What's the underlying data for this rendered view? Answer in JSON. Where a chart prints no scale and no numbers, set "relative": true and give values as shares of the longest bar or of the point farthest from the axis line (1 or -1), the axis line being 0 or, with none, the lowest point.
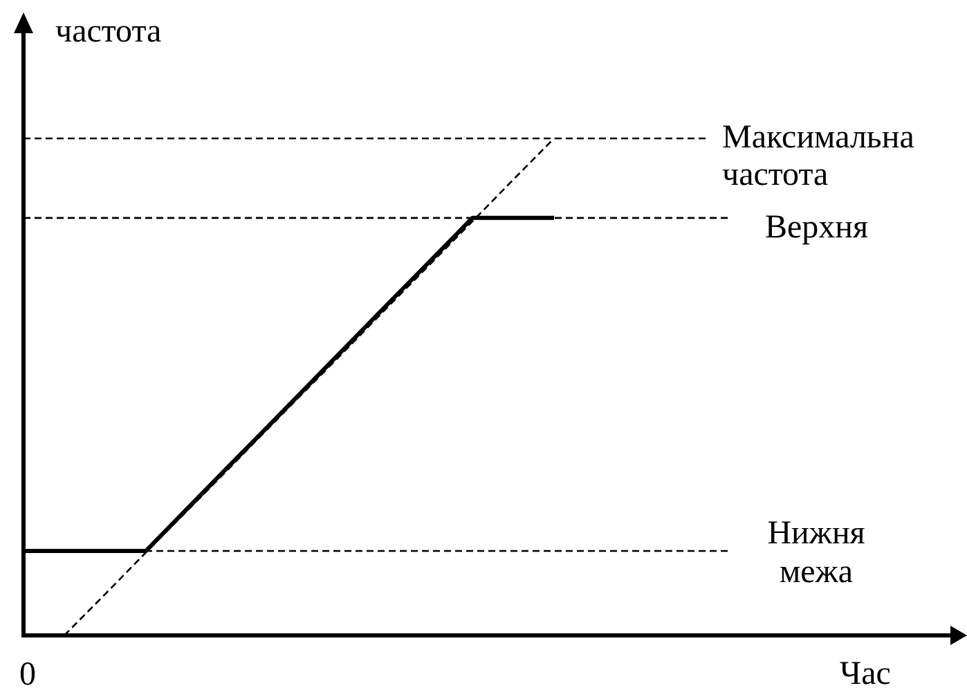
{
  "chart_data": {
    "type": "line",
    "xlabel": "Час",
    "ylabel": "частота",
    "relative": true,
    "tick_labels": false,
    "grid": false,
    "legend": false,
    "marker": "none",
    "annotations": [
      "0"
    ],
    "categories": [
      null,
      null,
      null,
      null,
      null,
      null,
      null,
      null,
      null,
      null,
      null,
      null,
      null,
      null,
      null,
      null,
      null,
      null,
      null,
      null,
      null,
      null,
      null,
      null
    ],
    "series": [
      {
        "color": "#000000",
        "line_style": "dashed",
        "values": [
          null,
          0,
          0.083,
          0.167,
          0.25,
          0.333,
          0.417,
          0.5,
          0.583,
          0.667,
          0.75,
          0.833,
          0.917,
          1,
          null,
          null,
          null,
          null,
          null,
          null,
          null,
          null,
          null,
          null
        ]
      },
      {
        "color": "#000000",
        "line_style": "solid",
        "values": [
          0.17,
          0.17,
          0.17,
          0.17,
          0.254,
          0.338,
          0.421,
          0.505,
          0.589,
          0.673,
          0.756,
          0.84,
          0.84,
          0.84,
          null,
          null,
          null,
          null,
          null,
          null,
          null,
          null,
          null,
          null
        ]
      }
    ],
    "ref_lines": [
      {
        "axis": "y",
        "value": 1,
        "label": "Максимальна\nчастота",
        "color": "#000000",
        "line_style": "dashed"
      },
      {
        "axis": "y",
        "value": 0.84,
        "label": "Верхня",
        "color": "#000000",
        "line_style": "dashed"
      },
      {
        "axis": "y",
        "value": 0.17,
        "label": "Нижня\nмежа",
        "color": "#000000",
        "line_style": "dashed"
      }
    ]
  }
}
